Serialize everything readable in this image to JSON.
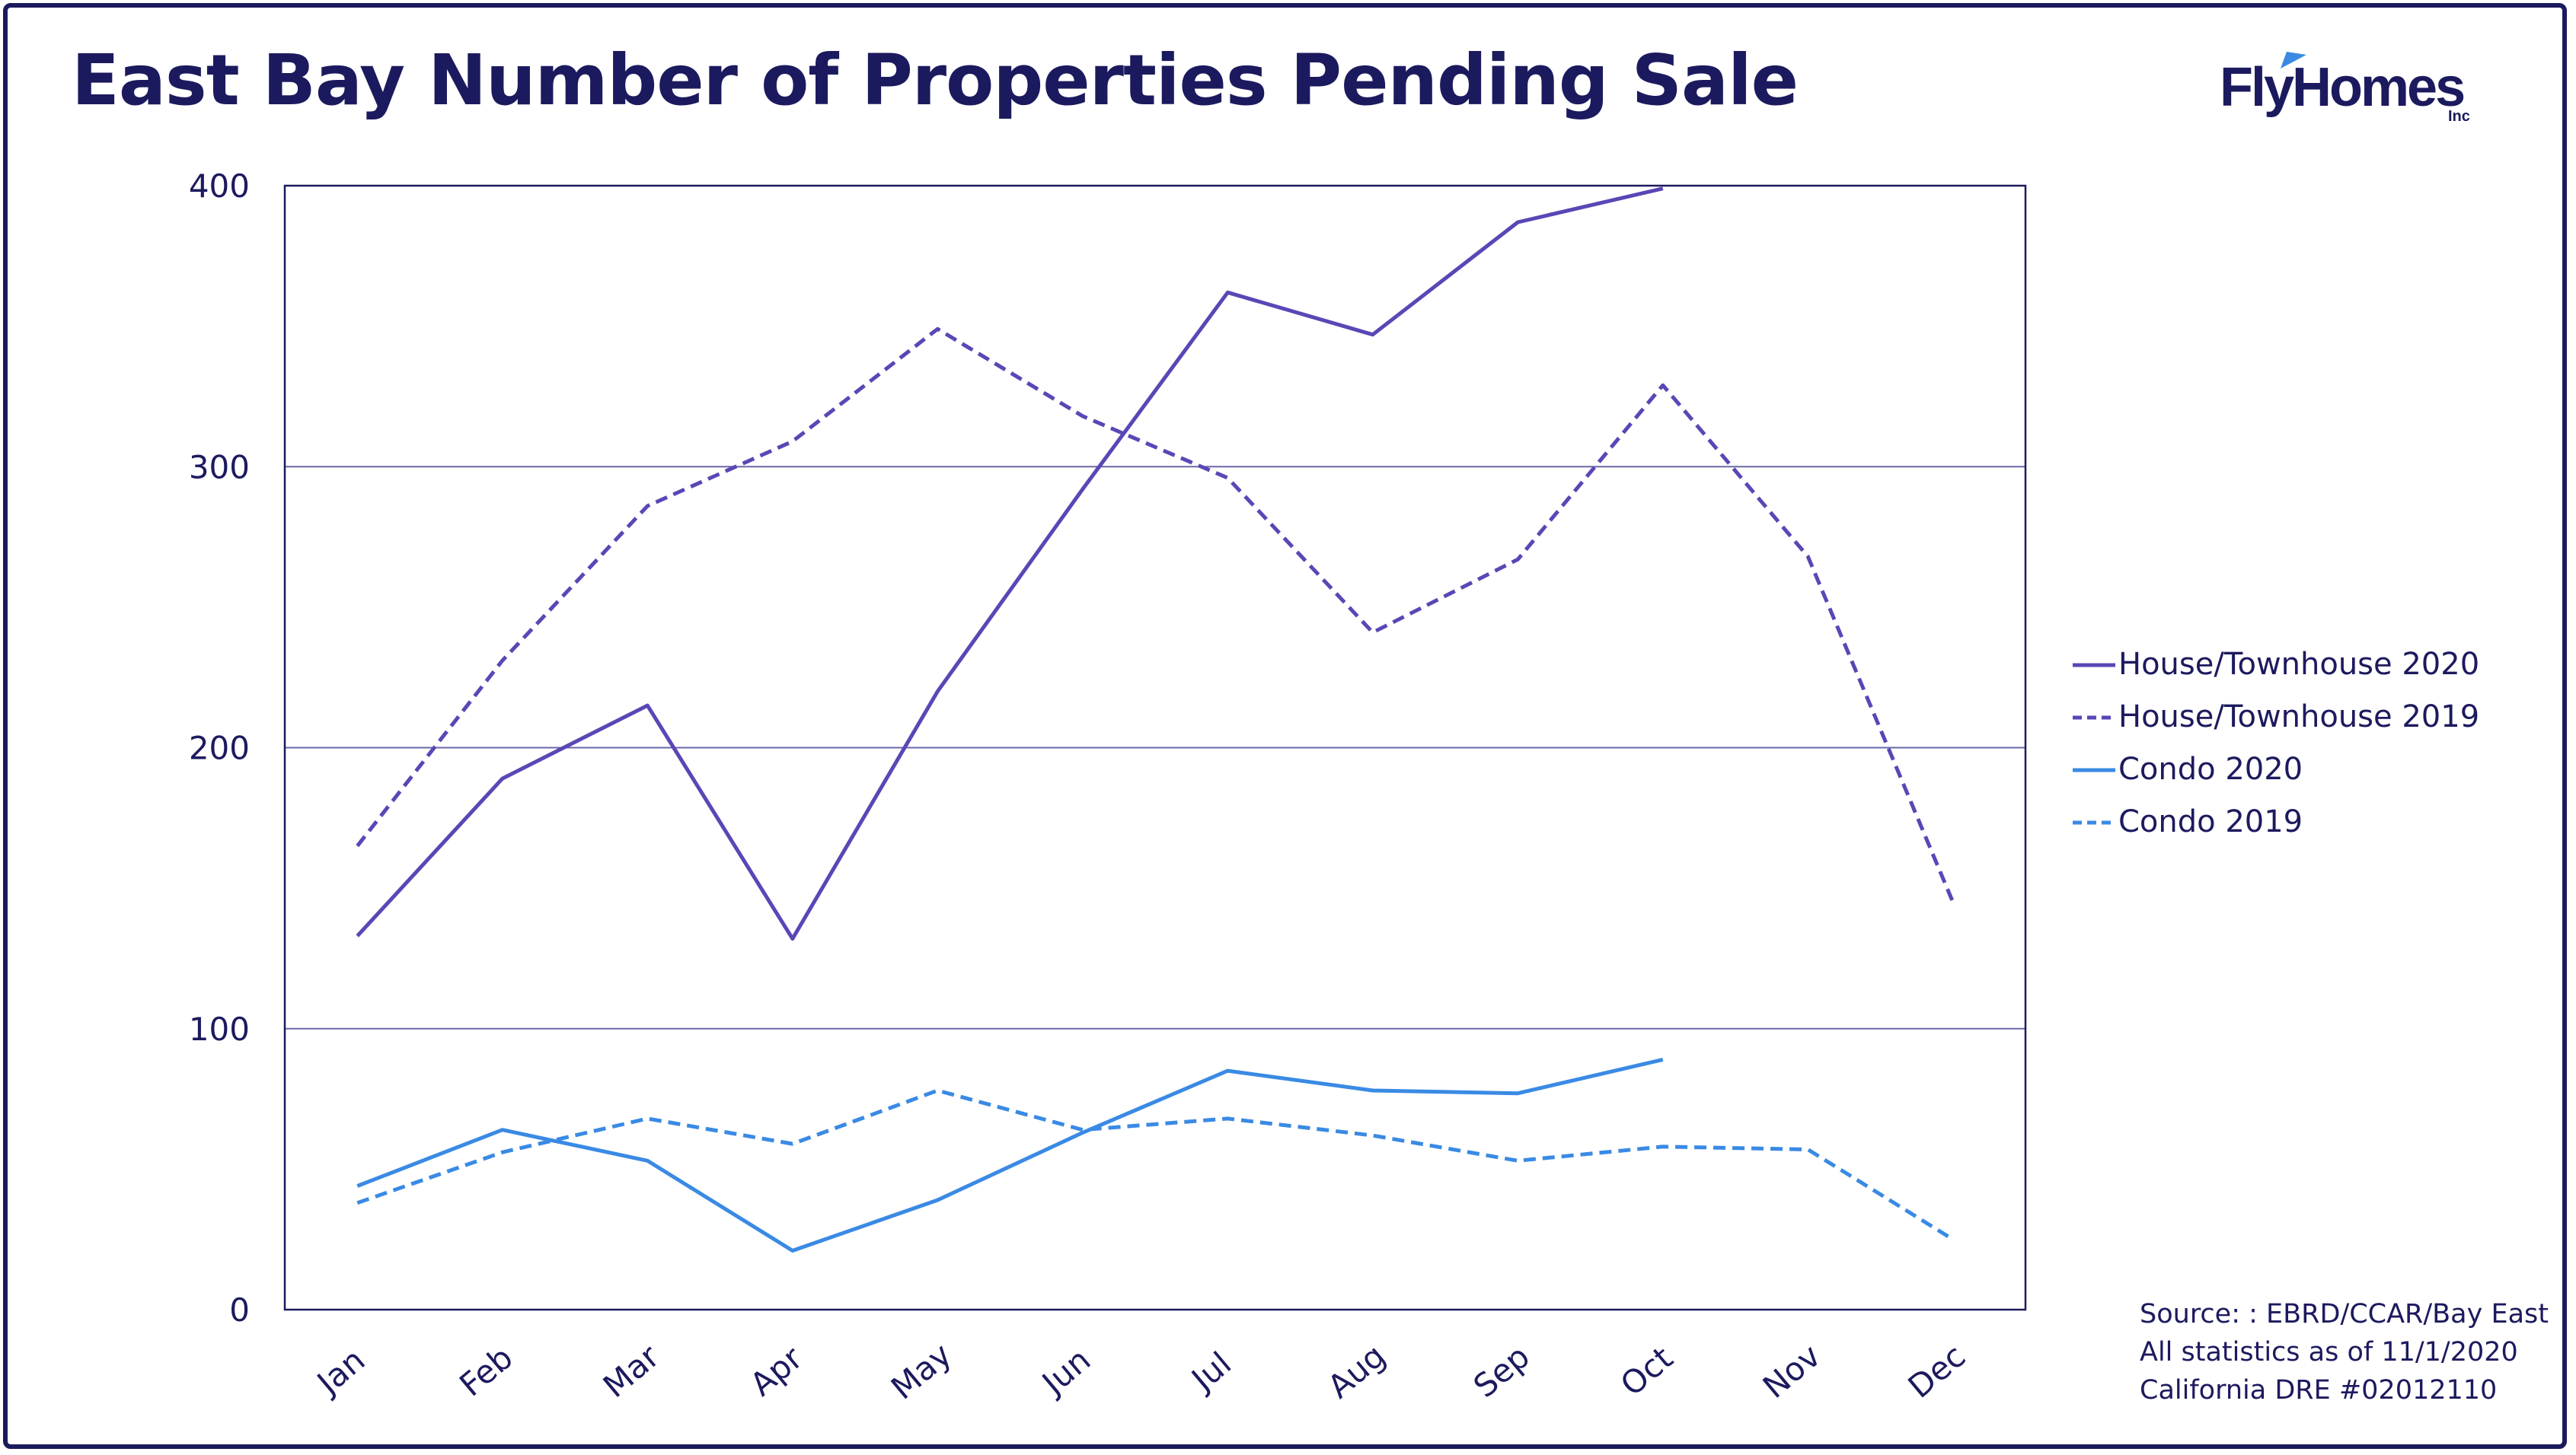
{
  "title": "East Bay Number of Properties Pending Sale",
  "logo": {
    "text": "FlyHomes",
    "suffix": "Inc"
  },
  "source_lines": [
    "Source: : EBRD/CCAR/Bay East",
    "All statistics as of 11/1/2020",
    "California DRE #02012110"
  ],
  "colors": {
    "frame": "#1c1a5e",
    "house": "#5b46b6",
    "condo": "#3a8ae4",
    "text": "#1c1a5e"
  },
  "chart_data": {
    "type": "line",
    "title": "East Bay Number of Properties Pending Sale",
    "xlabel": "",
    "ylabel": "",
    "categories": [
      "Jan",
      "Feb",
      "Mar",
      "Apr",
      "May",
      "Jun",
      "Jul",
      "Aug",
      "Sep",
      "Oct",
      "Nov",
      "Dec"
    ],
    "yticks": [
      "0",
      "100",
      "200",
      "300",
      "400"
    ],
    "ylim": [
      0,
      400
    ],
    "grid": "horizontal",
    "legend_position": "right",
    "series": [
      {
        "name": "House/Townhouse 2020",
        "style": "solid",
        "color": "#5b46b6",
        "values": [
          133,
          189,
          215,
          132,
          220,
          292,
          362,
          347,
          387,
          399,
          null,
          null
        ]
      },
      {
        "name": "House/Townhouse 2019",
        "style": "dashed",
        "color": "#5b46b6",
        "values": [
          165,
          231,
          286,
          309,
          349,
          318,
          296,
          241,
          267,
          329,
          268,
          145
        ]
      },
      {
        "name": "Condo 2020",
        "style": "solid",
        "color": "#3a8ae4",
        "values": [
          44,
          64,
          53,
          21,
          39,
          63,
          85,
          78,
          77,
          89,
          null,
          null
        ]
      },
      {
        "name": "Condo 2019",
        "style": "dashed",
        "color": "#3a8ae4",
        "values": [
          38,
          56,
          68,
          59,
          78,
          64,
          68,
          62,
          53,
          58,
          57,
          25
        ]
      }
    ]
  }
}
